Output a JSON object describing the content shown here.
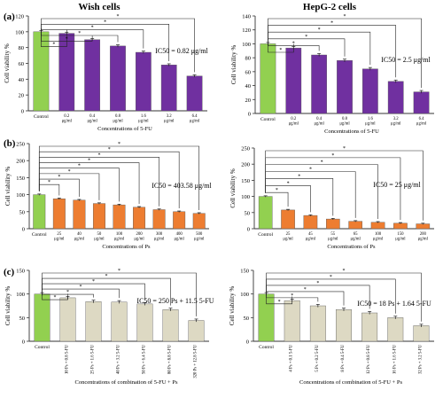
{
  "figure": {
    "col_titles": [
      "Wish cells",
      "HepG-2 cells"
    ],
    "panel_letters": [
      "(a)",
      "(b)",
      "(c)"
    ]
  },
  "chart_data": [
    {
      "type": "bar",
      "panel": "(a)",
      "ylabel": "Cell viability %",
      "xlabel": "Concentrations of 5-FU",
      "ylim": [
        0,
        120
      ],
      "yticks": [
        0,
        20,
        40,
        60,
        80,
        100,
        120
      ],
      "annotation": "IC50 = 0.82 μg/ml",
      "categories": [
        "Control",
        "0.2 μg/ml",
        "0.4 μg/ml",
        "0.8 μg/ml",
        "1.6 μg/ml",
        "3.2 μg/ml",
        "6.4 μg/ml"
      ],
      "values": [
        100,
        98,
        90,
        82,
        74,
        58,
        44
      ],
      "errors": [
        1.5,
        1.5,
        1.5,
        1.5,
        1.5,
        1.5,
        1.5
      ],
      "colors": [
        "#92d050",
        "#7030a0",
        "#7030a0",
        "#7030a0",
        "#7030a0",
        "#7030a0",
        "#7030a0"
      ],
      "brackets": [
        "*",
        "*",
        "*",
        "*",
        "*",
        "*"
      ]
    },
    {
      "type": "bar",
      "panel": "",
      "ylabel": "Cell viability %",
      "xlabel": "Concentrations of 5-FU",
      "ylim": [
        0,
        140
      ],
      "yticks": [
        0,
        20,
        40,
        60,
        80,
        100,
        120,
        140
      ],
      "annotation": "IC50 = 2.5 μg/ml",
      "categories": [
        "Control",
        "0.2 μg/ml",
        "0.4 μg/ml",
        "0.8 μg/ml",
        "1.6 μg/ml",
        "3.2 μg/ml",
        "6.4 μg/ml"
      ],
      "values": [
        100,
        94,
        84,
        76,
        64,
        46,
        31
      ],
      "errors": [
        2,
        2,
        2,
        2,
        2,
        2,
        2
      ],
      "colors": [
        "#92d050",
        "#7030a0",
        "#7030a0",
        "#7030a0",
        "#7030a0",
        "#7030a0",
        "#7030a0"
      ],
      "brackets": [
        "*",
        "*",
        "*",
        "*",
        "*",
        "*"
      ]
    },
    {
      "type": "bar",
      "panel": "(b)",
      "ylabel": "Cell viability %",
      "xlabel": "Concentrations of Ps",
      "ylim": [
        0,
        250
      ],
      "yticks": [
        0,
        50,
        100,
        150,
        200,
        250
      ],
      "annotation": "IC50 = 403.58 μg/ml",
      "categories": [
        "Control",
        "25 μg/ml",
        "40 μg/ml",
        "50 μg/ml",
        "100 μg/ml",
        "200 μg/ml",
        "300 μg/ml",
        "400 μg/ml",
        "500 μg/ml"
      ],
      "values": [
        100,
        88,
        84,
        74,
        70,
        63,
        56,
        50,
        45
      ],
      "errors": [
        2,
        2,
        2,
        2,
        2,
        2,
        2,
        2,
        2
      ],
      "colors": [
        "#92d050",
        "#ed7d31",
        "#ed7d31",
        "#ed7d31",
        "#ed7d31",
        "#ed7d31",
        "#ed7d31",
        "#ed7d31",
        "#ed7d31"
      ],
      "brackets": [
        "*",
        "*",
        "*",
        "*",
        "*",
        "*",
        "*",
        "*"
      ]
    },
    {
      "type": "bar",
      "panel": "",
      "ylabel": "Cell viability %",
      "xlabel": "Concentrations of Ps",
      "ylim": [
        0,
        250
      ],
      "yticks": [
        0,
        50,
        100,
        150,
        200,
        250
      ],
      "annotation": "IC50 = 25 μg/ml",
      "categories": [
        "Control",
        "25 μg/ml",
        "45 μg/ml",
        "55 μg/ml",
        "65 μg/ml",
        "100 μg/ml",
        "150 μg/ml",
        "200 μg/ml"
      ],
      "values": [
        100,
        58,
        41,
        30,
        23,
        20,
        17,
        15
      ],
      "errors": [
        2,
        2,
        2,
        2,
        2,
        2,
        2,
        2
      ],
      "colors": [
        "#92d050",
        "#ed7d31",
        "#ed7d31",
        "#ed7d31",
        "#ed7d31",
        "#ed7d31",
        "#ed7d31",
        "#ed7d31"
      ],
      "brackets": [
        "*",
        "*",
        "*",
        "*",
        "*",
        "*",
        "*"
      ]
    },
    {
      "type": "bar",
      "panel": "(c)",
      "ylabel": "Cell viability %",
      "xlabel": "Concentrations of combination of 5-FU + Ps",
      "ylim": [
        0,
        150
      ],
      "yticks": [
        0,
        50,
        100,
        150
      ],
      "annotation": "IC50 = 250 Ps + 11.5 5-FU",
      "categories": [
        "Control",
        "10 Ps + 0.8 5-FU",
        "25 Ps + 1.6 5-FU",
        "40 Ps + 3.2 5-FU",
        "50 Ps + 6.4 5-FU",
        "80 Ps + 8.8 5-FU",
        "320 Ps + 12.8 5-FU"
      ],
      "values": [
        100,
        92,
        84,
        83,
        79,
        67,
        44
      ],
      "errors": [
        3,
        3,
        3,
        3,
        3,
        3,
        3
      ],
      "colors": [
        "#92d050",
        "#ddd9c3",
        "#ddd9c3",
        "#ddd9c3",
        "#ddd9c3",
        "#ddd9c3",
        "#ddd9c3"
      ],
      "brackets": [
        "*",
        "*",
        "*",
        "*",
        "*",
        "*"
      ]
    },
    {
      "type": "bar",
      "panel": "",
      "ylabel": "Cell viability %",
      "xlabel": "Concentrations of combination of 5-FU + Ps",
      "ylim": [
        0,
        150
      ],
      "yticks": [
        0,
        50,
        100,
        150
      ],
      "annotation": "IC50 = 18 Ps + 1.64 5-FU",
      "categories": [
        "Control",
        "4 Ps + 0.1 5-FU",
        "5 Ps + 0.2 5-FU",
        "8 Ps + 0.4 5-FU",
        "12 Ps + 0.8 5-FU",
        "16 Ps + 1.6 5-FU",
        "32 Ps + 3.2 5-FU"
      ],
      "values": [
        100,
        86,
        75,
        67,
        60,
        50,
        33
      ],
      "errors": [
        3,
        3,
        3,
        3,
        3,
        3,
        3
      ],
      "colors": [
        "#92d050",
        "#ddd9c3",
        "#ddd9c3",
        "#ddd9c3",
        "#ddd9c3",
        "#ddd9c3",
        "#ddd9c3"
      ],
      "brackets": [
        "*",
        "*",
        "*",
        "*",
        "*",
        "*"
      ]
    }
  ]
}
